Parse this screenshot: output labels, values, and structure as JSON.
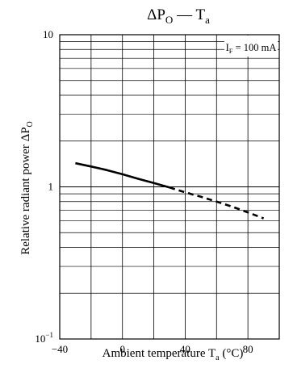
{
  "chart_data": {
    "type": "line",
    "title": {
      "main": "ΔP",
      "main_sub": "O",
      "sep": " — ",
      "var": "T",
      "var_sub": "a"
    },
    "xlabel": {
      "text": "Ambient temperature  T",
      "sub": "a",
      "unit": " (°C)"
    },
    "ylabel": {
      "text": "Relative radiant power  ΔP",
      "sub": "O"
    },
    "xlim": [
      -40,
      100
    ],
    "ylim": [
      0.1,
      10
    ],
    "yscale": "log",
    "grid": true,
    "x_ticks": [
      {
        "value": -40,
        "label": "−40"
      },
      {
        "value": 0,
        "label": "0"
      },
      {
        "value": 40,
        "label": "40"
      },
      {
        "value": 80,
        "label": "80"
      }
    ],
    "y_ticks": [
      {
        "value": 10,
        "label": "10",
        "exp": ""
      },
      {
        "value": 1,
        "label": "1",
        "exp": ""
      },
      {
        "value": 0.1,
        "label": "10",
        "exp": "−1"
      }
    ],
    "annotation": {
      "text_pre": "I",
      "text_sub": "F",
      "text_post": " = 100 mA"
    },
    "series": [
      {
        "style": "solid",
        "x": [
          -30,
          -20,
          -10,
          0,
          10,
          20,
          30
        ],
        "y": [
          1.43,
          1.36,
          1.29,
          1.21,
          1.13,
          1.06,
          0.99
        ]
      },
      {
        "style": "dashed",
        "x": [
          30,
          40,
          50,
          60,
          70,
          80,
          90
        ],
        "y": [
          0.99,
          0.92,
          0.86,
          0.8,
          0.74,
          0.68,
          0.62
        ]
      }
    ]
  }
}
